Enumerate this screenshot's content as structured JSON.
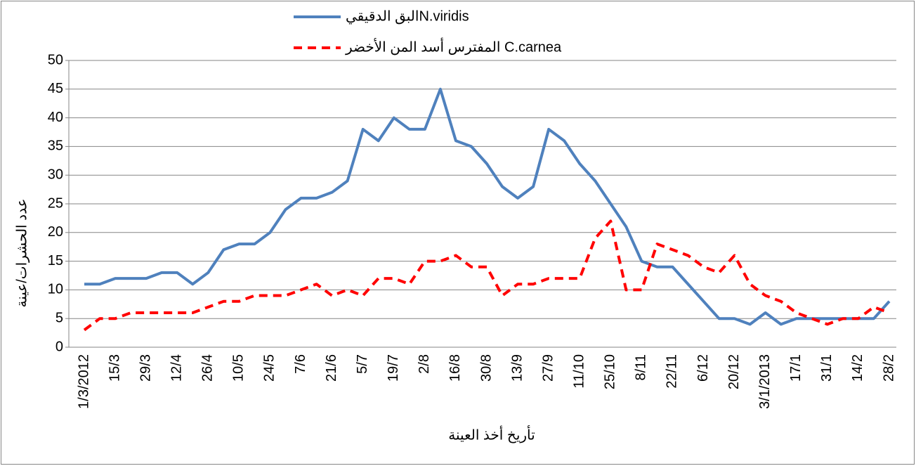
{
  "chart_data": {
    "type": "line",
    "x_label": "تأريخ أخذ العينة",
    "y_label": "عدد الحشرات/عينة",
    "categories": [
      "1/3/2012",
      null,
      "15/3",
      null,
      "29/3",
      null,
      "12/4",
      null,
      "26/4",
      null,
      "10/5",
      null,
      "24/5",
      null,
      "7/6",
      null,
      "21/6",
      null,
      "5/7",
      null,
      "19/7",
      null,
      "2/8",
      null,
      "16/8",
      null,
      "30/8",
      null,
      "13/9",
      null,
      "27/9",
      null,
      "11/10",
      null,
      "25/10",
      null,
      "8/11",
      null,
      "22/11",
      null,
      "6/12",
      null,
      "20/12",
      null,
      "3/1/2013",
      null,
      "17/1",
      null,
      "31/1",
      null,
      "14/2",
      null,
      "28/2"
    ],
    "series": [
      {
        "name": "البق الدقيقيN.viridis",
        "color": "#4f81bd",
        "dash": false,
        "values": [
          11,
          11,
          12,
          12,
          12,
          13,
          13,
          11,
          13,
          17,
          18,
          18,
          20,
          24,
          26,
          26,
          27,
          29,
          38,
          36,
          40,
          38,
          38,
          45,
          36,
          35,
          32,
          28,
          26,
          28,
          38,
          36,
          32,
          29,
          25,
          21,
          15,
          14,
          14,
          11,
          8,
          5,
          5,
          4,
          6,
          4,
          5,
          5,
          5,
          5,
          5,
          5,
          8
        ]
      },
      {
        "name": "المفترس أسد المن الأخضر C.carnea",
        "color": "#ff0000",
        "dash": true,
        "values": [
          3,
          5,
          5,
          6,
          6,
          6,
          6,
          6,
          7,
          8,
          8,
          9,
          9,
          9,
          10,
          11,
          9,
          10,
          9,
          12,
          12,
          11,
          15,
          15,
          16,
          14,
          14,
          9,
          11,
          11,
          12,
          12,
          12,
          19,
          22,
          10,
          10,
          18,
          17,
          16,
          14,
          13,
          16,
          11,
          9,
          8,
          6,
          5,
          4,
          5,
          5,
          7,
          6
        ]
      }
    ],
    "ylim": [
      0,
      50
    ],
    "yticks": [
      0,
      5,
      10,
      15,
      20,
      25,
      30,
      35,
      40,
      45,
      50
    ],
    "grid": true,
    "legend": "top"
  }
}
